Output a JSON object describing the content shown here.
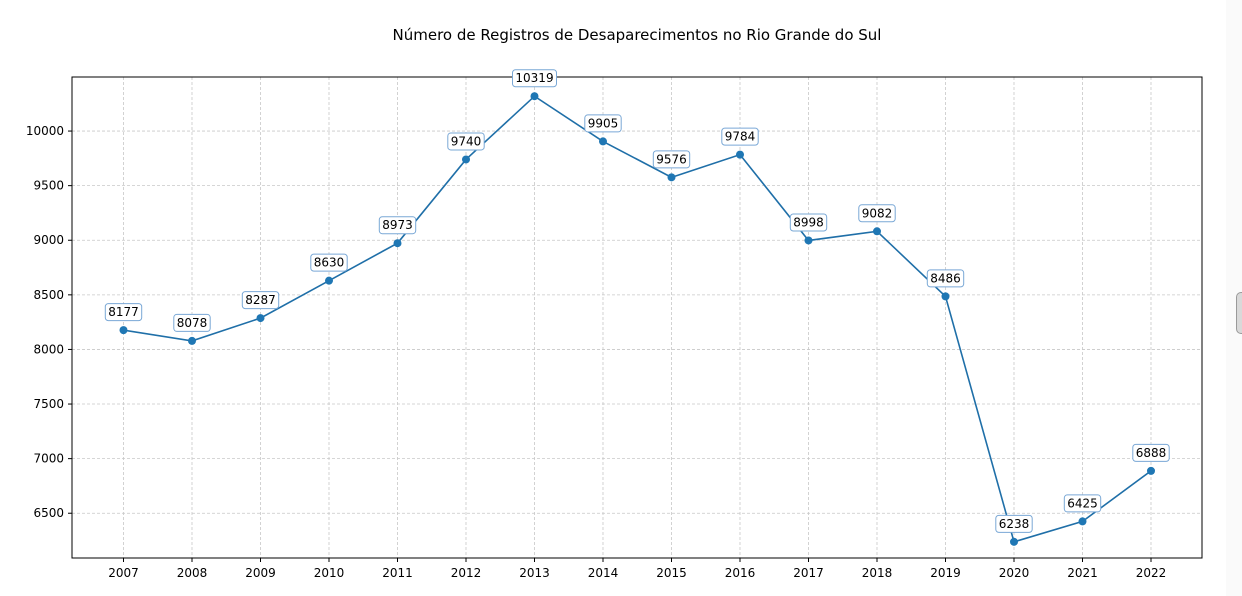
{
  "chart_data": {
    "type": "line",
    "title": "Número de Registros de Desaparecimentos no Rio Grande do Sul",
    "xlabel": "",
    "ylabel": "",
    "categories": [
      "2007",
      "2008",
      "2009",
      "2010",
      "2011",
      "2012",
      "2013",
      "2014",
      "2015",
      "2016",
      "2017",
      "2018",
      "2019",
      "2020",
      "2021",
      "2022"
    ],
    "series": [
      {
        "values": [
          8177,
          8078,
          8287,
          8630,
          8973,
          9740,
          10319,
          9905,
          9576,
          9784,
          8998,
          9082,
          8486,
          6238,
          6425,
          6888
        ]
      }
    ],
    "data_labels": [
      "8177",
      "8078",
      "8287",
      "8630",
      "8973",
      "9740",
      "10319",
      "9905",
      "9576",
      "9784",
      "8998",
      "9082",
      "8486",
      "6238",
      "6425",
      "6888"
    ],
    "yticks": [
      6500,
      7000,
      7500,
      8000,
      8500,
      9000,
      9500,
      10000
    ],
    "ytick_labels": [
      "6500",
      "7000",
      "7500",
      "8000",
      "8500",
      "9000",
      "9500",
      "10000"
    ],
    "ylim": [
      6090,
      10495
    ],
    "grid": true,
    "marker": "circle",
    "colors": {
      "line": "#1f6fa8",
      "marker": "#1f77b4",
      "label_border": "#7aa8d6",
      "grid": "#c8c8c8"
    }
  }
}
